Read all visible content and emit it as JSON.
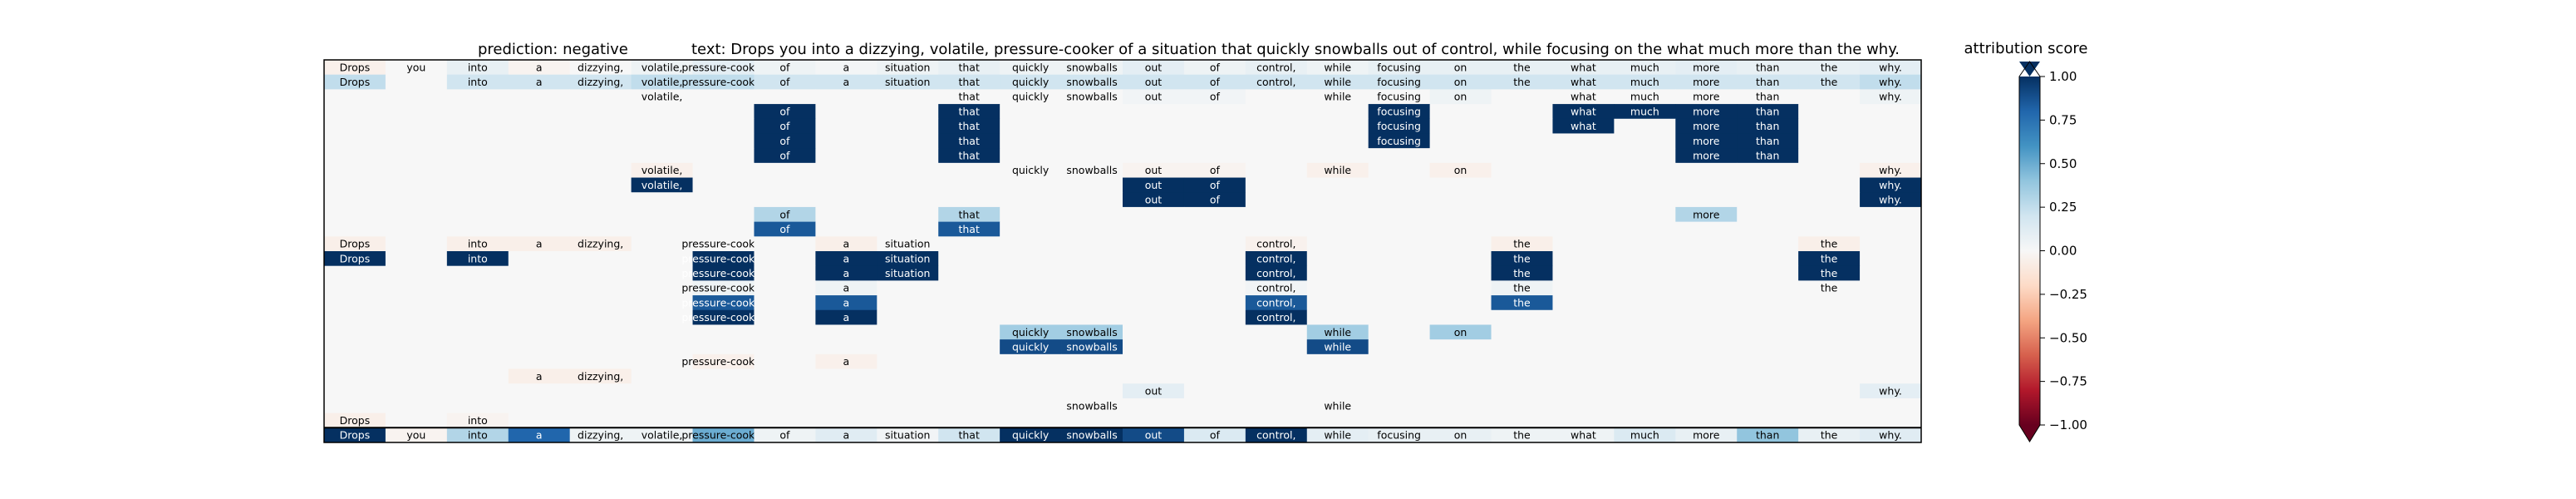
{
  "header": {
    "prediction": "prediction:  negative",
    "text": "text:  Drops you into a dizzying, volatile, pressure-cooker of a situation that quickly snowballs out of control, while focusing on the what much more than the why."
  },
  "colorbar": {
    "label": "attribution score",
    "ticks": [
      "1.00",
      "0.75",
      "0.50",
      "0.25",
      "0.00",
      "−0.25",
      "−0.50",
      "−0.75",
      "−1.00"
    ]
  },
  "chart_data": {
    "type": "heatmap",
    "colormap": "RdBu",
    "vmin": -1,
    "vmax": 1,
    "tokens": [
      "Drops",
      "you",
      "into",
      "a",
      "dizzying,",
      "volatile,",
      "pressure-cooker",
      "of",
      "a",
      "situation",
      "that",
      "quickly",
      "snowballs",
      "out",
      "of",
      "control,",
      "while",
      "focusing",
      "on",
      "the",
      "what",
      "much",
      "more",
      "than",
      "the",
      "why."
    ],
    "rows": [
      {
        "words": {
          "0": "Drops",
          "1": "you",
          "2": "into",
          "3": "a",
          "4": "dizzying,",
          "5": "volatile,",
          "6": "pressure-cooker",
          "7": "of",
          "8": "a",
          "9": "situation",
          "10": "that",
          "11": "quickly",
          "12": "snowballs",
          "13": "out",
          "14": "of",
          "15": "control,",
          "16": "while",
          "17": "focusing",
          "18": "on",
          "19": "the",
          "20": "what",
          "21": "much",
          "22": "more",
          "23": "than",
          "24": "the",
          "25": "why."
        },
        "scores": {
          "0": -0.05,
          "2": 0.08,
          "3": -0.03,
          "5": 0.05,
          "6": 0.1,
          "7": 0.05,
          "8": 0.02,
          "9": 0.05,
          "10": 0.08,
          "11": 0.05,
          "12": 0.05,
          "13": 0.1,
          "14": 0.05,
          "15": 0.08,
          "16": 0.05,
          "17": 0.08,
          "18": 0.08,
          "19": 0.08,
          "20": 0.08,
          "21": 0.08,
          "22": 0.1,
          "23": 0.08,
          "24": 0.08,
          "25": 0.1
        }
      },
      {
        "words": {
          "0": "Drops",
          "2": "into",
          "3": "a",
          "4": "dizzying,",
          "5": "volatile,",
          "6": "pressure-cooker",
          "7": "of",
          "8": "a",
          "9": "situation",
          "10": "that",
          "11": "quickly",
          "12": "snowballs",
          "13": "out",
          "14": "of",
          "15": "control,",
          "16": "while",
          "17": "focusing",
          "18": "on",
          "19": "the",
          "20": "what",
          "21": "much",
          "22": "more",
          "23": "than",
          "24": "the",
          "25": "why."
        },
        "scores": {
          "0": 0.25,
          "2": 0.2,
          "3": 0.2,
          "4": 0.2,
          "5": 0.25,
          "6": 0.25,
          "7": 0.2,
          "8": 0.2,
          "9": 0.2,
          "10": 0.2,
          "11": 0.2,
          "12": 0.2,
          "13": 0.2,
          "14": 0.2,
          "15": 0.2,
          "16": 0.2,
          "17": 0.2,
          "18": 0.2,
          "19": 0.2,
          "20": 0.2,
          "21": 0.2,
          "22": 0.2,
          "23": 0.2,
          "24": 0.2,
          "25": 0.25
        }
      },
      {
        "words": {
          "5": "volatile,",
          "10": "that",
          "11": "quickly",
          "12": "snowballs",
          "13": "out",
          "14": "of",
          "16": "while",
          "17": "focusing",
          "18": "on",
          "20": "what",
          "21": "much",
          "22": "more",
          "23": "than",
          "25": "why."
        },
        "scores": {
          "13": 0.03,
          "14": 0.03,
          "18": 0.05,
          "25": 0.05
        }
      },
      {
        "words": {
          "7": "of",
          "10": "that",
          "17": "focusing",
          "20": "what",
          "21": "much",
          "22": "more",
          "23": "than"
        },
        "scores": {
          "7": 1,
          "10": 1,
          "17": 1,
          "20": 1,
          "21": 1,
          "22": 1,
          "23": 1
        }
      },
      {
        "words": {
          "7": "of",
          "10": "that",
          "17": "focusing",
          "20": "what",
          "22": "more",
          "23": "than"
        },
        "scores": {
          "7": 1,
          "10": 1,
          "17": 1,
          "20": 1,
          "22": 1,
          "23": 1
        }
      },
      {
        "words": {
          "7": "of",
          "10": "that",
          "17": "focusing",
          "22": "more",
          "23": "than"
        },
        "scores": {
          "7": 1,
          "10": 1,
          "17": 1,
          "22": 1,
          "23": 1
        }
      },
      {
        "words": {
          "7": "of",
          "10": "that",
          "22": "more",
          "23": "than"
        },
        "scores": {
          "7": 1,
          "10": 1,
          "22": 1,
          "23": 1
        }
      },
      {
        "words": {
          "5": "volatile,",
          "11": "quickly",
          "12": "snowballs",
          "13": "out",
          "14": "of",
          "16": "while",
          "18": "on",
          "25": "why."
        },
        "scores": {
          "5": -0.05,
          "13": -0.03,
          "14": -0.03,
          "16": -0.05,
          "18": -0.05,
          "25": -0.05
        }
      },
      {
        "words": {
          "5": "volatile,",
          "13": "out",
          "14": "of",
          "25": "why."
        },
        "scores": {
          "5": 1,
          "13": 1,
          "14": 1,
          "25": 1
        }
      },
      {
        "words": {
          "13": "out",
          "14": "of",
          "25": "why."
        },
        "scores": {
          "13": 1,
          "14": 1,
          "25": 1
        }
      },
      {
        "words": {
          "7": "of",
          "10": "that",
          "22": "more"
        },
        "scores": {
          "7": 0.3,
          "10": 0.3,
          "22": 0.3
        }
      },
      {
        "words": {
          "7": "of",
          "10": "that"
        },
        "scores": {
          "7": 0.85,
          "10": 0.85
        }
      },
      {
        "words": {
          "0": "Drops",
          "2": "into",
          "3": "a",
          "4": "dizzying,",
          "6": "pressure-cooker",
          "8": "a",
          "9": "situation",
          "15": "control,",
          "19": "the",
          "24": "the"
        },
        "scores": {
          "0": -0.06,
          "2": -0.06,
          "3": -0.06,
          "4": -0.06,
          "8": -0.06,
          "15": -0.04,
          "19": -0.06,
          "24": -0.06
        }
      },
      {
        "words": {
          "0": "Drops",
          "2": "into",
          "6": "pressure-cooker",
          "8": "a",
          "9": "situation",
          "15": "control,",
          "19": "the",
          "24": "the"
        },
        "scores": {
          "0": 1,
          "2": 1,
          "6": 1,
          "8": 1,
          "9": 1,
          "15": 1,
          "19": 1,
          "24": 1
        }
      },
      {
        "words": {
          "6": "pressure-cooker",
          "8": "a",
          "9": "situation",
          "15": "control,",
          "19": "the",
          "24": "the"
        },
        "scores": {
          "6": 1,
          "8": 1,
          "9": 1,
          "15": 1,
          "19": 1,
          "24": 1
        }
      },
      {
        "words": {
          "6": "pressure-cooker",
          "8": "a",
          "15": "control,",
          "19": "the",
          "24": "the"
        },
        "scores": {
          "6": 0.05,
          "8": 0.05,
          "15": 0.03,
          "19": 0.05
        }
      },
      {
        "words": {
          "6": "pressure-cooker",
          "8": "a",
          "15": "control,",
          "19": "the"
        },
        "scores": {
          "6": 0.85,
          "8": 0.85,
          "15": 0.85,
          "19": 0.85
        }
      },
      {
        "words": {
          "6": "pressure-cooker",
          "8": "a",
          "15": "control,"
        },
        "scores": {
          "6": 1,
          "8": 1,
          "15": 1
        }
      },
      {
        "words": {
          "11": "quickly",
          "12": "snowballs",
          "16": "while",
          "18": "on"
        },
        "scores": {
          "11": 0.35,
          "12": 0.35,
          "16": 0.35,
          "18": 0.35
        }
      },
      {
        "words": {
          "11": "quickly",
          "12": "snowballs",
          "16": "while"
        },
        "scores": {
          "11": 0.9,
          "12": 0.9,
          "16": 0.9
        }
      },
      {
        "words": {
          "6": "pressure-cooker",
          "8": "a"
        },
        "scores": {
          "6": -0.05,
          "8": -0.05
        }
      },
      {
        "words": {
          "3": "a",
          "4": "dizzying,"
        },
        "scores": {
          "3": -0.06,
          "4": -0.06
        }
      },
      {
        "words": {
          "13": "out",
          "25": "why."
        },
        "scores": {
          "13": 0.1,
          "25": 0.1
        }
      },
      {
        "words": {
          "12": "snowballs",
          "16": "while"
        },
        "scores": {}
      },
      {
        "words": {
          "0": "Drops",
          "2": "into"
        },
        "scores": {
          "0": -0.06,
          "2": -0.03
        }
      },
      {
        "words": {
          "0": "Drops",
          "1": "you",
          "2": "into",
          "3": "a",
          "4": "dizzying,",
          "5": "volatile,",
          "6": "pressure-cooker",
          "7": "of",
          "8": "a",
          "9": "situation",
          "10": "that",
          "11": "quickly",
          "12": "snowballs",
          "13": "out",
          "14": "of",
          "15": "control,",
          "16": "while",
          "17": "focusing",
          "18": "on",
          "19": "the",
          "20": "what",
          "21": "much",
          "22": "more",
          "23": "than",
          "24": "the",
          "25": "why."
        },
        "scores": {
          "0": 1,
          "1": -0.03,
          "2": 0.3,
          "3": 0.8,
          "4": 0.05,
          "5": 0.05,
          "6": 0.5,
          "7": 0.05,
          "8": 0.12,
          "9": 0.03,
          "10": 0.2,
          "11": 1,
          "12": 1,
          "13": 0.9,
          "14": 0.15,
          "15": 1,
          "16": 0.1,
          "17": 0.08,
          "18": 0.08,
          "19": 0.05,
          "20": 0.05,
          "21": 0.15,
          "22": 0.08,
          "23": 0.4,
          "24": 0.08,
          "25": 0.12
        }
      }
    ]
  }
}
